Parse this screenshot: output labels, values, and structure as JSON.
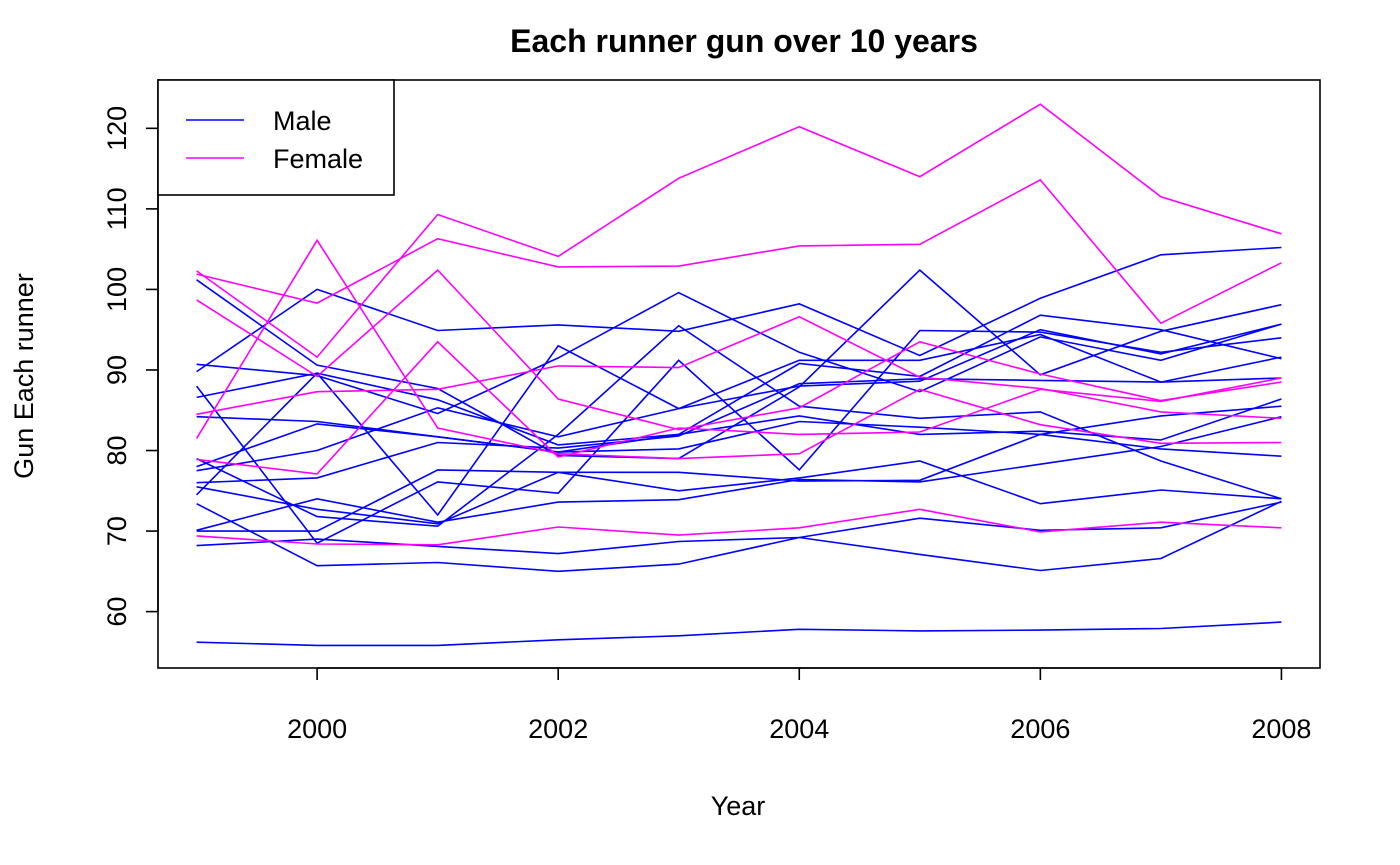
{
  "chart_data": {
    "type": "line",
    "title": "Each runner gun over 10 years",
    "xlabel": "Year",
    "ylabel": "Gun Each runner",
    "x": [
      1999,
      2000,
      2001,
      2002,
      2003,
      2004,
      2005,
      2006,
      2007,
      2008
    ],
    "xlim": [
      1998.68,
      2008.32
    ],
    "ylim": [
      53.0,
      126.0
    ],
    "x_ticks": [
      2000,
      2002,
      2004,
      2006,
      2008
    ],
    "y_ticks": [
      60,
      70,
      80,
      90,
      100,
      110,
      120
    ],
    "grid": false,
    "legend": {
      "position": "top-left",
      "entries": [
        {
          "label": "Male",
          "color": "#0000ff"
        },
        {
          "label": "Female",
          "color": "#ff00ff"
        }
      ]
    },
    "colors": {
      "Male": "#0000ff",
      "Female": "#ff00ff"
    },
    "series": [
      {
        "group": "Male",
        "values": [
          56.2,
          55.8,
          55.8,
          56.5,
          57.0,
          57.8,
          57.6,
          57.7,
          57.9,
          58.7
        ]
      },
      {
        "group": "Male",
        "values": [
          68.2,
          69.0,
          68.1,
          67.2,
          68.7,
          69.2,
          71.6,
          70.1,
          70.4,
          73.6
        ]
      },
      {
        "group": "Male",
        "values": [
          70.1,
          74.0,
          71.1,
          73.6,
          73.9,
          76.4,
          76.1,
          78.3,
          80.5,
          84.2
        ]
      },
      {
        "group": "Male",
        "values": [
          73.4,
          65.7,
          66.1,
          65.0,
          65.9,
          69.2,
          67.1,
          65.1,
          66.6,
          73.7
        ]
      },
      {
        "group": "Male",
        "values": [
          76.0,
          76.6,
          81.0,
          80.3,
          81.8,
          88.3,
          88.9,
          88.7,
          88.5,
          89.0
        ]
      },
      {
        "group": "Male",
        "values": [
          78.0,
          83.3,
          81.7,
          79.8,
          80.2,
          83.6,
          82.9,
          82.0,
          80.2,
          79.3
        ]
      },
      {
        "group": "Male",
        "values": [
          74.5,
          89.6,
          72.0,
          93.0,
          85.2,
          91.2,
          91.2,
          94.4,
          88.5,
          91.6
        ]
      },
      {
        "group": "Male",
        "values": [
          79.0,
          71.8,
          70.6,
          82.0,
          95.5,
          85.5,
          84.0,
          84.8,
          78.7,
          74.0
        ]
      },
      {
        "group": "Male",
        "values": [
          86.6,
          89.6,
          86.3,
          80.7,
          82.0,
          90.8,
          89.2,
          96.8,
          95.0,
          91.4
        ]
      },
      {
        "group": "Male",
        "values": [
          89.8,
          100.0,
          94.9,
          95.6,
          94.8,
          98.2,
          91.8,
          98.9,
          104.3,
          105.2
        ]
      },
      {
        "group": "Male",
        "values": [
          101.2,
          90.6,
          87.7,
          79.4,
          79.0,
          87.9,
          102.4,
          89.4,
          94.8,
          98.1
        ]
      },
      {
        "group": "Male",
        "values": [
          90.7,
          89.3,
          84.6,
          91.5,
          99.6,
          92.2,
          87.3,
          94.1,
          91.2,
          95.7
        ]
      },
      {
        "group": "Male",
        "values": [
          88.0,
          68.5,
          76.1,
          74.7,
          91.2,
          77.6,
          94.9,
          94.7,
          92.2,
          94.0
        ]
      },
      {
        "group": "Male",
        "values": [
          77.5,
          80.0,
          85.3,
          81.7,
          85.2,
          88.0,
          88.6,
          95.0,
          92.0,
          95.7
        ]
      },
      {
        "group": "Male",
        "values": [
          84.2,
          83.6,
          81.7,
          79.8,
          82.0,
          84.3,
          82.0,
          82.4,
          81.3,
          86.4
        ]
      },
      {
        "group": "Male",
        "values": [
          75.5,
          72.7,
          70.9,
          77.3,
          77.3,
          76.2,
          76.3,
          82.0,
          84.3,
          85.5
        ]
      },
      {
        "group": "Male",
        "values": [
          70.0,
          70.0,
          77.6,
          77.3,
          75.0,
          76.6,
          78.7,
          73.4,
          75.1,
          74.0
        ]
      },
      {
        "group": "Female",
        "values": [
          69.4,
          68.4,
          68.3,
          70.5,
          69.5,
          70.4,
          72.7,
          69.9,
          71.1,
          70.4
        ]
      },
      {
        "group": "Female",
        "values": [
          102.3,
          91.6,
          109.3,
          104.1,
          113.8,
          120.2,
          114.0,
          123.0,
          111.5,
          106.9
        ]
      },
      {
        "group": "Female",
        "values": [
          101.9,
          98.3,
          106.3,
          102.8,
          102.9,
          105.4,
          105.6,
          113.6,
          95.8,
          103.3
        ]
      },
      {
        "group": "Female",
        "values": [
          98.7,
          89.2,
          102.4,
          86.4,
          82.6,
          85.3,
          93.5,
          89.5,
          86.2,
          88.5
        ]
      },
      {
        "group": "Female",
        "values": [
          81.5,
          106.1,
          82.8,
          79.6,
          79.0,
          79.6,
          87.6,
          83.2,
          80.9,
          81.0
        ]
      },
      {
        "group": "Female",
        "values": [
          84.5,
          87.3,
          87.6,
          90.5,
          90.3,
          96.6,
          89.1,
          87.7,
          84.8,
          84.0
        ]
      },
      {
        "group": "Female",
        "values": [
          78.9,
          77.1,
          93.5,
          79.2,
          82.8,
          82.0,
          82.3,
          87.6,
          86.1,
          89.0
        ]
      }
    ]
  }
}
